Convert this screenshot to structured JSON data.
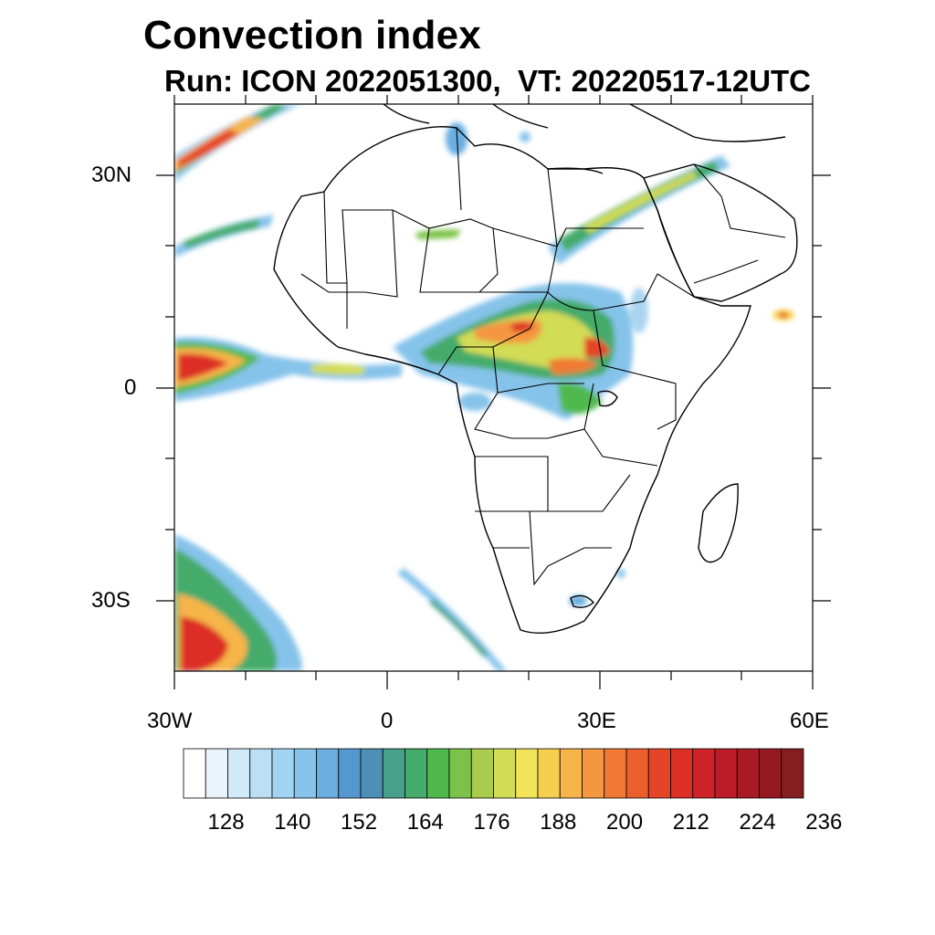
{
  "title": "Convection index",
  "subtitle": "Run: ICON 2022051300,  VT: 20220517-12UTC",
  "map": {
    "lon_range": [
      -30,
      60
    ],
    "lat_range": [
      -40,
      40
    ],
    "x_ticks": [
      "30W",
      "0",
      "30E",
      "60E"
    ],
    "y_ticks": [
      "30N",
      "0",
      "30S"
    ]
  },
  "colorbar": {
    "labels": [
      "128",
      "140",
      "152",
      "164",
      "176",
      "188",
      "200",
      "212",
      "224",
      "236"
    ],
    "colors": [
      "#ffffff",
      "#e9f4fb",
      "#d2e9f8",
      "#bcdff5",
      "#a1d4f2",
      "#86c3ea",
      "#6aaee0",
      "#5597cf",
      "#4d8fb5",
      "#47a08a",
      "#44ab6a",
      "#4fb94e",
      "#7cc24a",
      "#a8cc4c",
      "#d2dc55",
      "#f2e458",
      "#f7cf50",
      "#f7b448",
      "#f59640",
      "#f07a35",
      "#eb5f2c",
      "#e54527",
      "#dc2f26",
      "#cc2328",
      "#bb1c27",
      "#a81a24",
      "#951920",
      "#851e1e"
    ]
  }
}
